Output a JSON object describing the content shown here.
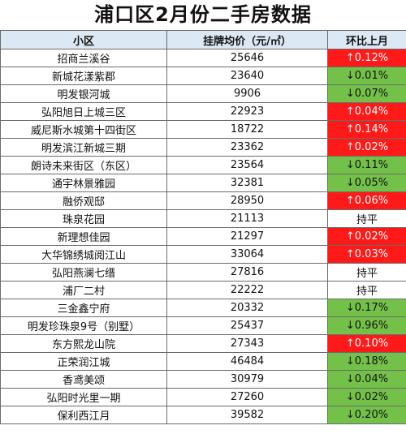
{
  "title": "浦口区2月份二手房数据",
  "headers": {
    "name": "小区",
    "price": "挂牌均价（元/㎡）",
    "change": "环比上月"
  },
  "colors": {
    "up": "#ff1a1a",
    "down": "#74c14a",
    "header": "#dce8f4"
  },
  "rows": [
    {
      "name": "招商兰溪谷",
      "price": "25646",
      "change": "↑0.12%",
      "trend": "up"
    },
    {
      "name": "新城花漾紫郡",
      "price": "23640",
      "change": "↓0.01%",
      "trend": "down"
    },
    {
      "name": "明发银河城",
      "price": "9906",
      "change": "↓0.07%",
      "trend": "down"
    },
    {
      "name": "弘阳旭日上城三区",
      "price": "22923",
      "change": "↑0.04%",
      "trend": "up"
    },
    {
      "name": "威尼斯水城第十四街区",
      "price": "18722",
      "change": "↑0.14%",
      "trend": "up"
    },
    {
      "name": "明发滨江新城三期",
      "price": "23362",
      "change": "↑0.02%",
      "trend": "up"
    },
    {
      "name": "朗诗未来街区（东区）",
      "price": "23564",
      "change": "↓0.11%",
      "trend": "down"
    },
    {
      "name": "通宇林景雅园",
      "price": "32381",
      "change": "↓0.05%",
      "trend": "down"
    },
    {
      "name": "融侨观邸",
      "price": "28950",
      "change": "↑0.06%",
      "trend": "up"
    },
    {
      "name": "珠泉花园",
      "price": "21113",
      "change": "持平",
      "trend": "flat"
    },
    {
      "name": "新理想佳园",
      "price": "21297",
      "change": "↑0.02%",
      "trend": "up"
    },
    {
      "name": "大华锦绣城阅江山",
      "price": "33064",
      "change": "↑0.03%",
      "trend": "up"
    },
    {
      "name": "弘阳燕澜七缙",
      "price": "27816",
      "change": "持平",
      "trend": "flat"
    },
    {
      "name": "浦厂二村",
      "price": "22222",
      "change": "持平",
      "trend": "flat"
    },
    {
      "name": "三金鑫宁府",
      "price": "20332",
      "change": "↓0.17%",
      "trend": "down"
    },
    {
      "name": "明发珍珠泉9号（别墅）",
      "price": "25437",
      "change": "↓0.96%",
      "trend": "down"
    },
    {
      "name": "东方熙龙山院",
      "price": "27343",
      "change": "↑0.10%",
      "trend": "up"
    },
    {
      "name": "正荣润江城",
      "price": "46484",
      "change": "↓0.18%",
      "trend": "down"
    },
    {
      "name": "香鸢美颂",
      "price": "30979",
      "change": "↓0.04%",
      "trend": "down"
    },
    {
      "name": "弘阳时光里一期",
      "price": "27260",
      "change": "↓0.02%",
      "trend": "down"
    },
    {
      "name": "保利西江月",
      "price": "39582",
      "change": "↓0.20%",
      "trend": "down"
    }
  ]
}
